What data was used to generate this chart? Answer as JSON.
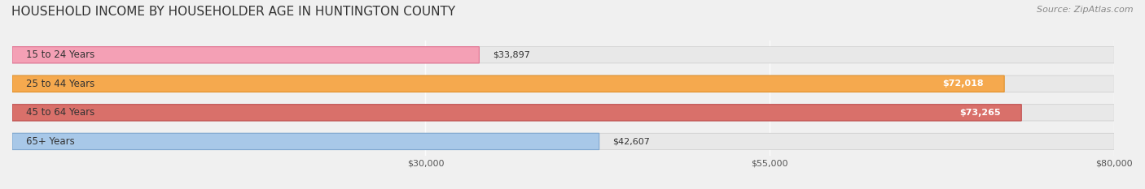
{
  "title": "HOUSEHOLD INCOME BY HOUSEHOLDER AGE IN HUNTINGTON COUNTY",
  "source": "Source: ZipAtlas.com",
  "categories": [
    "15 to 24 Years",
    "25 to 44 Years",
    "45 to 64 Years",
    "65+ Years"
  ],
  "values": [
    33897,
    72018,
    73265,
    42607
  ],
  "bar_colors": [
    "#f4a0b5",
    "#f5a94e",
    "#d9706a",
    "#a8c8e8"
  ],
  "bar_edge_colors": [
    "#e07090",
    "#e0902a",
    "#c05050",
    "#80a8d0"
  ],
  "value_labels": [
    "$33,897",
    "$72,018",
    "$73,265",
    "$42,607"
  ],
  "xlim": [
    0,
    80000
  ],
  "xticks": [
    30000,
    55000,
    80000
  ],
  "xtick_labels": [
    "$30,000",
    "$55,000",
    "$80,000"
  ],
  "bg_color": "#f0f0f0",
  "bar_bg_color": "#e8e8e8",
  "title_fontsize": 11,
  "source_fontsize": 8,
  "label_fontsize": 8.5,
  "value_fontsize": 8,
  "tick_fontsize": 8
}
